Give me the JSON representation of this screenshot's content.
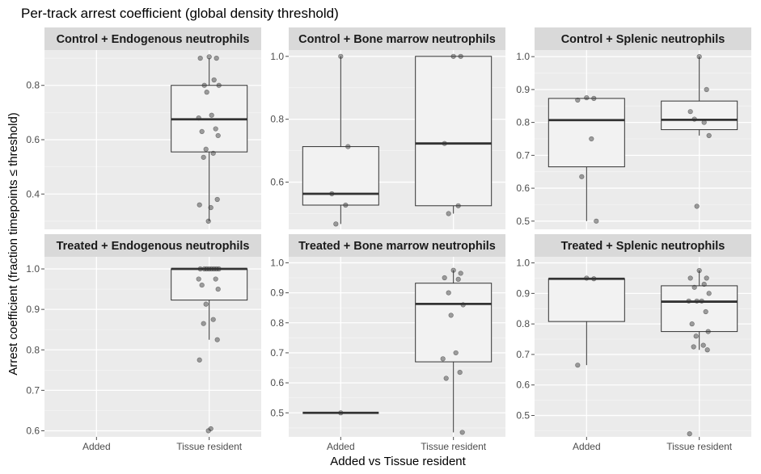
{
  "chart_data": {
    "type": "box",
    "title": "Per-track arrest coefficient (global density threshold)",
    "xlabel": "Added vs Tissue resident",
    "ylabel": "Arrest coefficient (fraction timepoints ≤ threshold)",
    "categories": [
      "Added",
      "Tissue resident"
    ],
    "grid": true,
    "panels": [
      {
        "name": "Control + Endogenous neutrophils",
        "ylim": [
          0.27,
          0.93
        ],
        "yticks": [
          0.4,
          0.6,
          0.8
        ],
        "tick_labels": [
          "0.4",
          "0.6",
          "0.8"
        ],
        "boxes": [
          {
            "category": "Tissue resident",
            "q1": 0.555,
            "median": 0.675,
            "q3": 0.8,
            "whisker_low": 0.3,
            "whisker_high": 0.9,
            "points": [
              0.905,
              0.9,
              0.9,
              0.82,
              0.8,
              0.8,
              0.775,
              0.69,
              0.68,
              0.64,
              0.63,
              0.615,
              0.565,
              0.55,
              0.535,
              0.38,
              0.36,
              0.35,
              0.3
            ]
          }
        ]
      },
      {
        "name": "Control + Bone marrow neutrophils",
        "ylim": [
          0.45,
          1.02
        ],
        "yticks": [
          0.6,
          0.8,
          1.0
        ],
        "tick_labels": [
          "0.6",
          "0.8",
          "1.0"
        ],
        "boxes": [
          {
            "category": "Added",
            "q1": 0.527,
            "median": 0.563,
            "q3": 0.713,
            "whisker_low": 0.467,
            "whisker_high": 1.0,
            "points": [
              1.0,
              0.713,
              0.563,
              0.527,
              0.467
            ]
          },
          {
            "category": "Tissue resident",
            "q1": 0.525,
            "median": 0.723,
            "q3": 1.0,
            "whisker_low": 0.5,
            "whisker_high": 1.0,
            "points": [
              1.0,
              1.0,
              0.723,
              0.525,
              0.5
            ]
          }
        ]
      },
      {
        "name": "Control + Splenic neutrophils",
        "ylim": [
          0.475,
          1.02
        ],
        "yticks": [
          0.5,
          0.6,
          0.7,
          0.8,
          0.9,
          1.0
        ],
        "tick_labels": [
          "0.5",
          "0.6",
          "0.7",
          "0.8",
          "0.9",
          "1.0"
        ],
        "boxes": [
          {
            "category": "Added",
            "q1": 0.665,
            "median": 0.807,
            "q3": 0.873,
            "whisker_low": 0.5,
            "whisker_high": 0.875,
            "points": [
              0.875,
              0.873,
              0.868,
              0.75,
              0.635,
              0.5
            ]
          },
          {
            "category": "Tissue resident",
            "q1": 0.778,
            "median": 0.808,
            "q3": 0.865,
            "whisker_low": 0.76,
            "whisker_high": 1.0,
            "points": [
              1.0,
              0.9,
              0.833,
              0.8,
              0.81,
              0.76,
              0.545
            ]
          }
        ]
      },
      {
        "name": "Treated + Endogenous neutrophils",
        "ylim": [
          0.585,
          1.03
        ],
        "yticks": [
          0.6,
          0.7,
          0.8,
          0.9,
          1.0
        ],
        "tick_labels": [
          "0.6",
          "0.7",
          "0.8",
          "0.9",
          "1.0"
        ],
        "boxes": [
          {
            "category": "Tissue resident",
            "q1": 0.923,
            "median": 1.0,
            "q3": 1.0,
            "whisker_low": 0.825,
            "whisker_high": 1.0,
            "points": [
              1.0,
              1.0,
              1.0,
              1.0,
              1.0,
              1.0,
              1.0,
              1.0,
              0.975,
              0.975,
              0.96,
              0.95,
              0.913,
              0.875,
              0.865,
              0.825,
              0.775,
              0.605,
              0.6
            ]
          }
        ]
      },
      {
        "name": "Treated + Bone marrow neutrophils",
        "ylim": [
          0.42,
          1.02
        ],
        "yticks": [
          0.5,
          0.6,
          0.7,
          0.8,
          0.9,
          1.0
        ],
        "tick_labels": [
          "0.5",
          "0.6",
          "0.7",
          "0.8",
          "0.9",
          "1.0"
        ],
        "boxes": [
          {
            "category": "Added",
            "q1": 0.5,
            "median": 0.5,
            "q3": 0.5,
            "whisker_low": 0.5,
            "whisker_high": 0.5,
            "points": [
              0.5
            ]
          },
          {
            "category": "Tissue resident",
            "q1": 0.67,
            "median": 0.863,
            "q3": 0.932,
            "whisker_low": 0.435,
            "whisker_high": 0.975,
            "points": [
              0.975,
              0.965,
              0.95,
              0.945,
              0.9,
              0.86,
              0.825,
              0.7,
              0.68,
              0.635,
              0.615,
              0.435
            ]
          }
        ]
      },
      {
        "name": "Treated + Splenic neutrophils",
        "ylim": [
          0.43,
          1.02
        ],
        "yticks": [
          0.5,
          0.6,
          0.7,
          0.8,
          0.9,
          1.0
        ],
        "tick_labels": [
          "0.5",
          "0.6",
          "0.7",
          "0.8",
          "0.9",
          "1.0"
        ],
        "boxes": [
          {
            "category": "Added",
            "q1": 0.808,
            "median": 0.948,
            "q3": 0.948,
            "whisker_low": 0.665,
            "whisker_high": 0.95,
            "points": [
              0.95,
              0.948,
              0.665
            ]
          },
          {
            "category": "Tissue resident",
            "q1": 0.775,
            "median": 0.873,
            "q3": 0.925,
            "whisker_low": 0.715,
            "whisker_high": 0.975,
            "points": [
              0.975,
              0.95,
              0.95,
              0.93,
              0.92,
              0.9,
              0.875,
              0.875,
              0.875,
              0.84,
              0.8,
              0.775,
              0.76,
              0.73,
              0.725,
              0.715,
              0.44
            ]
          }
        ]
      }
    ]
  }
}
